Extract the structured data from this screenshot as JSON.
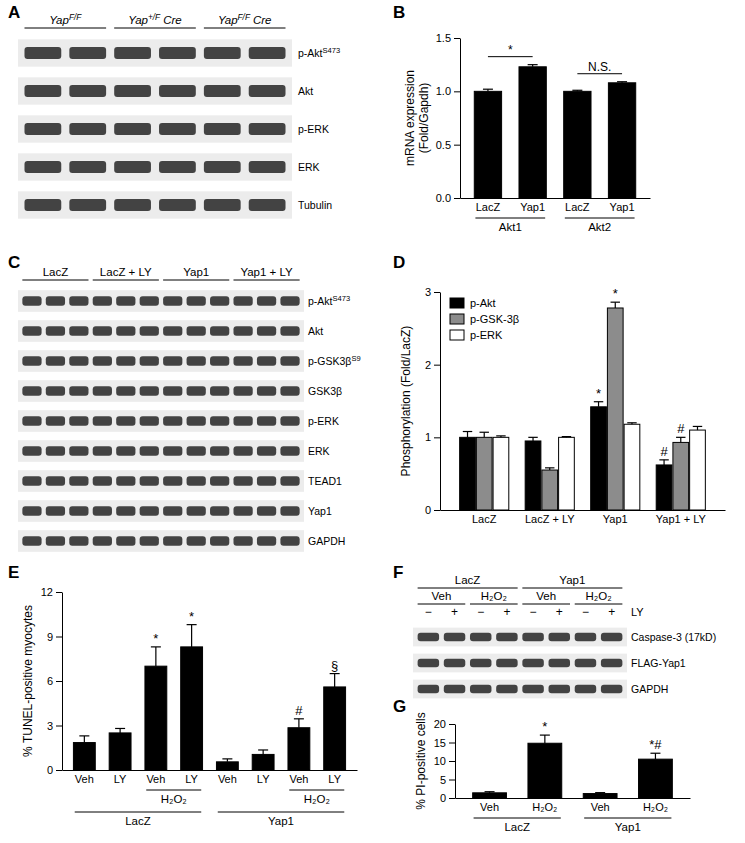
{
  "blots": [
    {
      "title": "A",
      "lanes": 6,
      "groups": [
        {
          "label": {
            "text": "Yap",
            "sup": "F/F"
          },
          "from": 0,
          "to": 1
        },
        {
          "label": {
            "text": "Yap",
            "sup": "+/F",
            "tail": "Cre"
          },
          "from": 2,
          "to": 3
        },
        {
          "label": {
            "text": "Yap",
            "sup": "F/F",
            "tail": "Cre"
          },
          "from": 4,
          "to": 5
        }
      ],
      "rows": [
        {
          "text": "p-Akt",
          "sup": "S473"
        },
        "Akt",
        "p-ERK",
        "ERK",
        "Tubulin"
      ]
    },
    {
      "title": "C",
      "lanes": 12,
      "groups": [
        {
          "label": "LacZ",
          "from": 0,
          "to": 2
        },
        {
          "label": "LacZ + LY",
          "from": 3,
          "to": 5
        },
        {
          "label": "Yap1",
          "from": 6,
          "to": 8
        },
        {
          "label": "Yap1 + LY",
          "from": 9,
          "to": 11
        }
      ],
      "rows": [
        {
          "text": "p-Akt",
          "sup": "S473"
        },
        "Akt",
        {
          "text": "p-GSK3β",
          "sup": "S9"
        },
        "GSK3β",
        "p-ERK",
        "ERK",
        "TEAD1",
        "Yap1",
        "GAPDH"
      ]
    },
    {
      "title": "F",
      "lanes": 8,
      "groups": [
        {
          "label": "LacZ",
          "from": 0,
          "to": 3
        },
        {
          "label": "Yap1",
          "from": 4,
          "to": 7
        }
      ],
      "subgroups": [
        {
          "label": "Veh",
          "from": 0,
          "to": 1
        },
        {
          "label": "H₂O₂",
          "from": 2,
          "to": 3
        },
        {
          "label": "Veh",
          "from": 4,
          "to": 5
        },
        {
          "label": "H₂O₂",
          "from": 6,
          "to": 7
        }
      ],
      "treatment": {
        "label": "LY",
        "lanes": [
          "−",
          "+",
          "−",
          "+",
          "−",
          "+",
          "−",
          "+"
        ]
      },
      "rows": [
        "Caspase-3 (17kD)",
        "FLAG-Yap1",
        "GAPDH"
      ]
    }
  ],
  "chart_data": [
    {
      "type": "bar",
      "title": "B",
      "categories": [
        "LacZ",
        "Yap1",
        "LacZ",
        "Yap1"
      ],
      "values": [
        1.0,
        1.23,
        1.0,
        1.08
      ],
      "errors": [
        0.02,
        0.02,
        0.01,
        0.01
      ],
      "color": "#000000",
      "ylim": [
        0,
        1.5
      ],
      "yticks": [
        {
          "value": 0,
          "label": "0.0"
        },
        0.5,
        {
          "value": 1,
          "label": "1.0"
        },
        1.5
      ],
      "y_label": [
        "mRNA expression",
        "(Fold/Gapdh)"
      ],
      "groups": [
        {
          "label": "Akt1",
          "from": 0,
          "to": 1
        },
        {
          "label": "Akt2",
          "from": 2,
          "to": 3
        }
      ],
      "annotations": [
        {
          "text": "*",
          "from": 0,
          "to": 1
        },
        {
          "text": "N.S.",
          "from": 2,
          "to": 3
        }
      ]
    },
    {
      "type": "bar",
      "title": "D",
      "categories": [
        "LacZ",
        "LacZ + LY",
        "Yap1",
        "Yap1 + LY"
      ],
      "series": [
        {
          "name": "p-Akt",
          "color": "#000000",
          "values": [
            1.0,
            0.95,
            1.42,
            0.62
          ],
          "errors": [
            0.08,
            0.05,
            0.07,
            0.07
          ]
        },
        {
          "name": "p-GSK-3β",
          "color": "#8c8c8c",
          "values": [
            1.0,
            0.55,
            2.78,
            0.93
          ],
          "errors": [
            0.07,
            0.03,
            0.08,
            0.07
          ]
        },
        {
          "name": "p-ERK",
          "color": "#ffffff",
          "values": [
            1.0,
            1.0,
            1.18,
            1.1
          ],
          "errors": [
            0.02,
            0.01,
            0.02,
            0.05
          ]
        }
      ],
      "ylim": [
        0,
        3
      ],
      "yticks": [
        0,
        1,
        2,
        3
      ],
      "y_label": "Phosphorylation (Fold/LacZ)",
      "legend": "top-left",
      "annotations": [
        {
          "text": "*",
          "series": 0,
          "index": 2
        },
        {
          "text": "*",
          "series": 1,
          "index": 2
        },
        {
          "text": "#",
          "series": 0,
          "index": 3
        },
        {
          "text": "#",
          "series": 1,
          "index": 3
        }
      ]
    },
    {
      "type": "bar",
      "title": "E",
      "categories": [
        "Veh",
        "LY",
        "Veh",
        "LY",
        "Veh",
        "LY",
        "Veh",
        "LY"
      ],
      "values": [
        1.85,
        2.5,
        7.0,
        8.3,
        0.55,
        1.05,
        2.85,
        5.6
      ],
      "errors": [
        0.45,
        0.3,
        1.3,
        1.5,
        0.2,
        0.3,
        0.6,
        0.9
      ],
      "color": "#000000",
      "ylim": [
        0,
        12
      ],
      "yticks": [
        0,
        3,
        6,
        9,
        12
      ],
      "y_label": "% TUNEL-positive myocytes",
      "subgroups": [
        {
          "label": "H₂O₂",
          "from": 2,
          "to": 3
        },
        {
          "label": "H₂O₂",
          "from": 6,
          "to": 7
        }
      ],
      "groups": [
        {
          "label": "LacZ",
          "from": 0,
          "to": 3
        },
        {
          "label": "Yap1",
          "from": 4,
          "to": 7
        }
      ],
      "annotations": [
        {
          "text": "*",
          "index": 2
        },
        {
          "text": "*",
          "index": 3
        },
        {
          "text": "#",
          "index": 6
        },
        {
          "text": "§",
          "index": 7
        }
      ]
    },
    {
      "type": "bar",
      "title": "G",
      "categories": [
        "Veh",
        "H₂O₂",
        "Veh",
        "H₂O₂"
      ],
      "values": [
        1.4,
        14.8,
        1.2,
        10.5
      ],
      "errors": [
        0.3,
        2.2,
        0.25,
        1.6
      ],
      "color": "#000000",
      "ylim": [
        0,
        20
      ],
      "yticks": [
        0,
        5,
        10,
        15,
        20
      ],
      "y_label": "% PI-positive cells",
      "groups": [
        {
          "label": "LacZ",
          "from": 0,
          "to": 1
        },
        {
          "label": "Yap1",
          "from": 2,
          "to": 3
        }
      ],
      "annotations": [
        {
          "text": "*",
          "index": 1
        },
        {
          "text": "*#",
          "index": 3
        }
      ]
    }
  ]
}
